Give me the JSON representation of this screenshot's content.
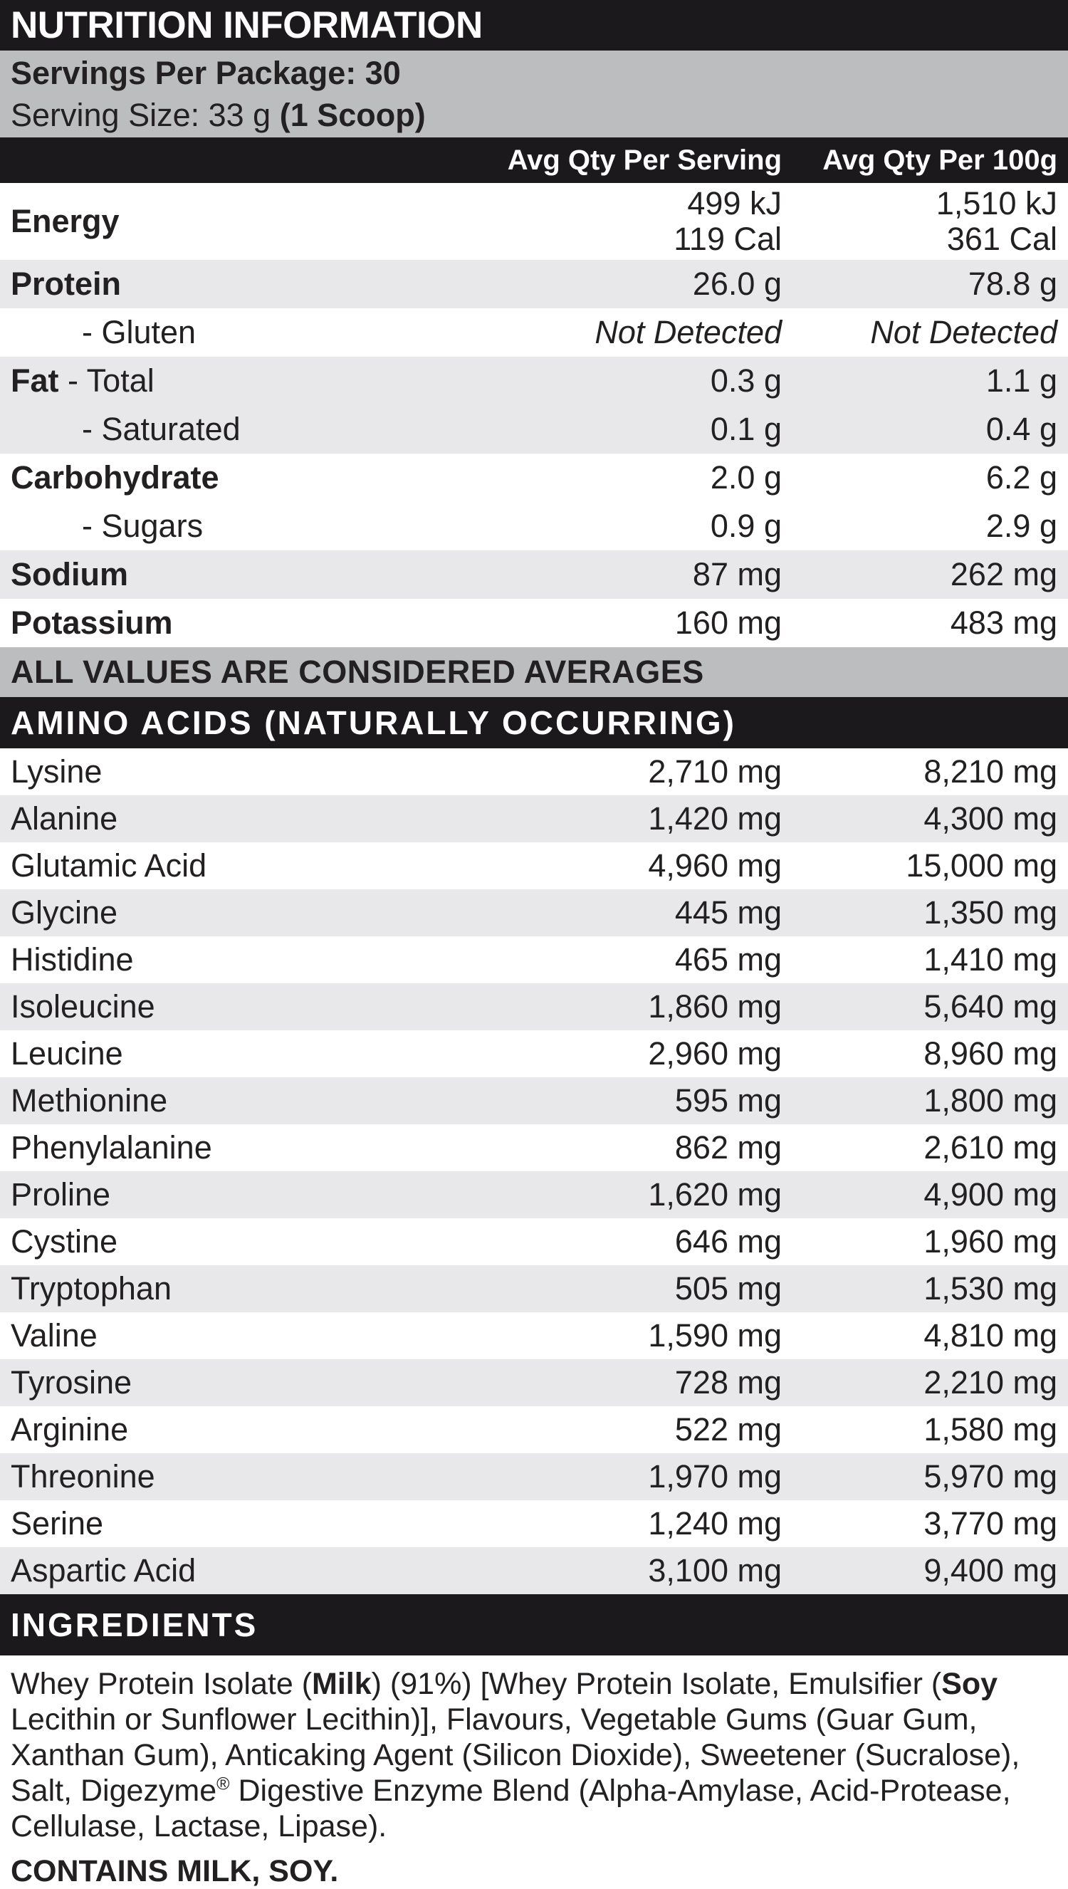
{
  "title": "NUTRITION INFORMATION",
  "servings": {
    "package_line": "Servings Per Package: 30",
    "size_line_regular": "Serving Size: 33 g ",
    "size_line_bold": "(1 Scoop)"
  },
  "columns": [
    "Avg Qty Per Serving",
    "Avg Qty Per 100g"
  ],
  "nutrition": {
    "rows": [
      {
        "bold": "Energy",
        "rest": "",
        "sub": false,
        "italic": false,
        "tall": true,
        "shade": "white",
        "serving": [
          "499 kJ",
          "119 Cal"
        ],
        "per100": [
          "1,510 kJ",
          "361 Cal"
        ]
      },
      {
        "bold": "Protein",
        "rest": "",
        "sub": false,
        "italic": false,
        "tall": false,
        "shade": "gray",
        "serving": [
          "26.0 g"
        ],
        "per100": [
          "78.8 g"
        ]
      },
      {
        "bold": "",
        "rest": "- Gluten",
        "sub": true,
        "italic": true,
        "tall": false,
        "shade": "white",
        "serving": [
          "Not Detected"
        ],
        "per100": [
          "Not Detected"
        ]
      },
      {
        "bold": "Fat",
        "rest": " - Total",
        "sub": false,
        "italic": false,
        "tall": false,
        "shade": "gray",
        "serving": [
          "0.3 g"
        ],
        "per100": [
          "1.1 g"
        ]
      },
      {
        "bold": "",
        "rest": "- Saturated",
        "sub": true,
        "italic": false,
        "tall": false,
        "shade": "gray",
        "serving": [
          "0.1 g"
        ],
        "per100": [
          "0.4 g"
        ]
      },
      {
        "bold": "Carbohydrate",
        "rest": "",
        "sub": false,
        "italic": false,
        "tall": false,
        "shade": "white",
        "serving": [
          "2.0 g"
        ],
        "per100": [
          "6.2 g"
        ]
      },
      {
        "bold": "",
        "rest": "- Sugars",
        "sub": true,
        "italic": false,
        "tall": false,
        "shade": "white",
        "serving": [
          "0.9 g"
        ],
        "per100": [
          "2.9 g"
        ]
      },
      {
        "bold": "Sodium",
        "rest": "",
        "sub": false,
        "italic": false,
        "tall": false,
        "shade": "gray",
        "serving": [
          "87 mg"
        ],
        "per100": [
          "262 mg"
        ]
      },
      {
        "bold": "Potassium",
        "rest": "",
        "sub": false,
        "italic": false,
        "tall": false,
        "shade": "white",
        "serving": [
          "160 mg"
        ],
        "per100": [
          "483 mg"
        ]
      }
    ]
  },
  "averages_note": "ALL VALUES ARE CONSIDERED AVERAGES",
  "amino": {
    "header": "AMINO ACIDS (NATURALLY OCCURRING)",
    "rows": [
      {
        "name": "Lysine",
        "serving": "2,710 mg",
        "per100": "8,210 mg"
      },
      {
        "name": "Alanine",
        "serving": "1,420 mg",
        "per100": "4,300 mg"
      },
      {
        "name": "Glutamic Acid",
        "serving": "4,960 mg",
        "per100": "15,000 mg"
      },
      {
        "name": "Glycine",
        "serving": "445 mg",
        "per100": "1,350 mg"
      },
      {
        "name": "Histidine",
        "serving": "465 mg",
        "per100": "1,410 mg"
      },
      {
        "name": "Isoleucine",
        "serving": "1,860 mg",
        "per100": "5,640 mg"
      },
      {
        "name": "Leucine",
        "serving": "2,960 mg",
        "per100": "8,960 mg"
      },
      {
        "name": "Methionine",
        "serving": "595 mg",
        "per100": "1,800 mg"
      },
      {
        "name": "Phenylalanine",
        "serving": "862 mg",
        "per100": "2,610 mg"
      },
      {
        "name": "Proline",
        "serving": "1,620 mg",
        "per100": "4,900 mg"
      },
      {
        "name": "Cystine",
        "serving": "646 mg",
        "per100": "1,960 mg"
      },
      {
        "name": "Tryptophan",
        "serving": "505 mg",
        "per100": "1,530 mg"
      },
      {
        "name": "Valine",
        "serving": "1,590 mg",
        "per100": "4,810 mg"
      },
      {
        "name": "Tyrosine",
        "serving": "728 mg",
        "per100": "2,210 mg"
      },
      {
        "name": "Arginine",
        "serving": "522 mg",
        "per100": "1,580 mg"
      },
      {
        "name": "Threonine",
        "serving": "1,970 mg",
        "per100": "5,970 mg"
      },
      {
        "name": "Serine",
        "serving": "1,240 mg",
        "per100": "3,770 mg"
      },
      {
        "name": "Aspartic Acid",
        "serving": "3,100 mg",
        "per100": "9,400 mg"
      }
    ]
  },
  "ingredients": {
    "header": "INGREDIENTS",
    "segments": [
      {
        "t": "Whey Protein Isolate ("
      },
      {
        "t": "Milk",
        "b": true
      },
      {
        "t": ") (91%) [Whey Protein Isolate, Emulsifier ("
      },
      {
        "t": "Soy",
        "b": true
      },
      {
        "t": " Lecithin or Sunflower Lecithin)], Flavours, Vegetable Gums (Guar Gum, Xanthan Gum), Anticaking Agent (Silicon Dioxide), Sweetener (Sucralose), Salt, Digezyme"
      },
      {
        "t": "®",
        "sup": true
      },
      {
        "t": " Digestive Enzyme Blend (Alpha-Amylase, Acid-Protease, Cellulase, Lactase, Lipase)."
      }
    ],
    "contains": "CONTAINS MILK, SOY."
  },
  "colors": {
    "bar_black": "#1c191c",
    "silver": "#bcbdbf",
    "row_stripe": "#e8e8ea",
    "ink": "#232021"
  }
}
